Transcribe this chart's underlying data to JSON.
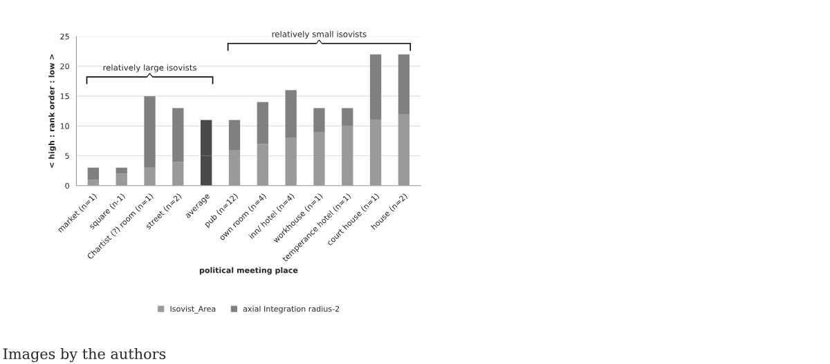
{
  "chart_data": {
    "type": "bar",
    "stacked": true,
    "categories": [
      "market (n=1)",
      "square (n-1)",
      "Chartist (?) room (n=1)",
      "street (n=2)",
      "average",
      "pub (n=12)",
      "own room (n=4)",
      "inn/ hotel (n=4)",
      "workhouse (n=1)",
      "temperance hotel (n=1)",
      "court house (n=1)",
      "house (n=2)"
    ],
    "series": [
      {
        "name": "Isovist_Area",
        "color": "#9a9a9a",
        "colors": [
          "#9a9a9a",
          "#9a9a9a",
          "#9a9a9a",
          "#9a9a9a",
          "#4a4a4a",
          "#9a9a9a",
          "#9a9a9a",
          "#9a9a9a",
          "#9a9a9a",
          "#9a9a9a",
          "#9a9a9a",
          "#9a9a9a"
        ],
        "values": [
          1,
          2,
          3,
          4,
          5,
          6,
          7,
          8,
          9,
          10,
          11,
          12
        ]
      },
      {
        "name": "axial Integration radius-2",
        "color": "#808080",
        "colors": [
          "#808080",
          "#808080",
          "#808080",
          "#808080",
          "#4a4a4a",
          "#808080",
          "#808080",
          "#808080",
          "#808080",
          "#808080",
          "#808080",
          "#808080"
        ],
        "values": [
          2,
          1,
          12,
          9,
          6,
          5,
          7,
          8,
          4,
          3,
          11,
          10
        ]
      }
    ],
    "xlabel": "political meeting place",
    "ylabel": "< high : rank order : low >",
    "ylim": [
      0,
      25
    ],
    "yticks": [
      0,
      5,
      10,
      15,
      20,
      25
    ],
    "grid": "y",
    "legend": "bottom",
    "annotations": [
      "relatively large isovists",
      "relatively small isovists",
      "Images by the authors"
    ]
  }
}
